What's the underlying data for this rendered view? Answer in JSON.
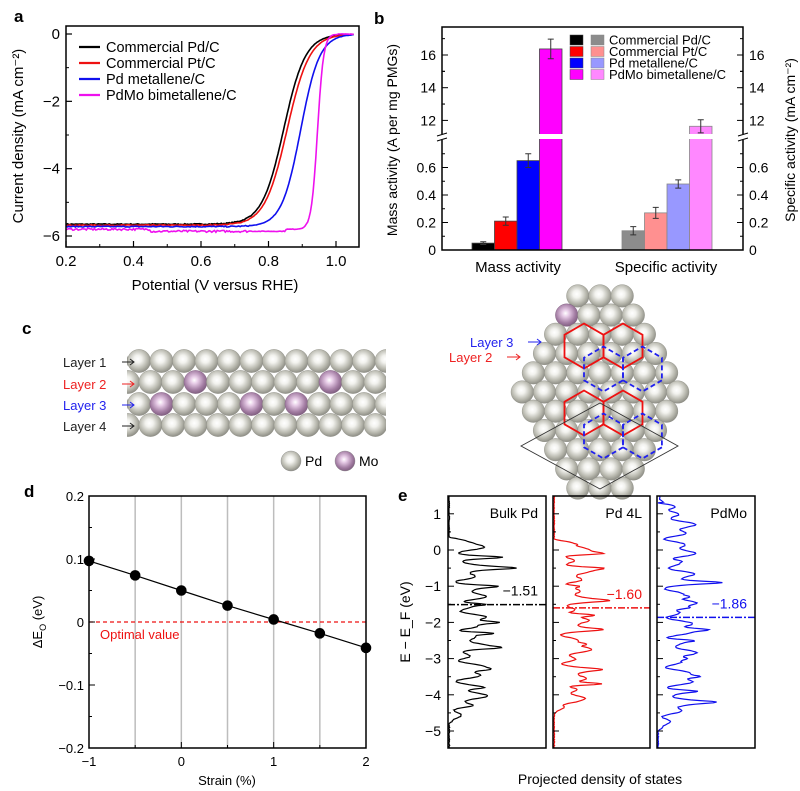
{
  "figure": {
    "panel_labels": [
      "a",
      "b",
      "c",
      "d",
      "e"
    ]
  },
  "chart_data": [
    {
      "panel": "a",
      "type": "line",
      "title": "",
      "xlabel": "Potential (V versus RHE)",
      "ylabel": "Current density (mA cm⁻²)",
      "xlim": [
        0.2,
        1.07
      ],
      "ylim": [
        -6.3,
        0.3
      ],
      "xticks": [
        0.2,
        0.4,
        0.6,
        0.8,
        1.0
      ],
      "xtick_labels": [
        "0.2",
        "0.4",
        "0.6",
        "0.8",
        "1.0"
      ],
      "yticks": [
        0,
        -2,
        -4,
        -6
      ],
      "ytick_labels": [
        "0",
        "−2",
        "−4",
        "−6"
      ],
      "legend_position": "top-left",
      "grid": false,
      "series": [
        {
          "name": "Commercial Pd/C",
          "color": "#000000",
          "limiting_current": -5.65,
          "half_wave_potential": 0.845,
          "slope": 0.032
        },
        {
          "name": "Commercial Pt/C",
          "color": "#ee1111",
          "limiting_current": -5.68,
          "half_wave_potential": 0.855,
          "slope": 0.033
        },
        {
          "name": "Pd metallene/C",
          "color": "#1010ee",
          "limiting_current": -5.72,
          "half_wave_potential": 0.895,
          "slope": 0.028
        },
        {
          "name": "PdMo bimetallene/C",
          "color": "#ee11ee",
          "limiting_current": -5.8,
          "half_wave_potential": 0.945,
          "slope": 0.009
        }
      ]
    },
    {
      "panel": "b",
      "type": "bar",
      "title": "",
      "categories": [
        "Mass activity",
        "Specific activity"
      ],
      "ylabel_left": "Mass activity (A per mg PMGs)",
      "ylabel_right": "Specific activity (mA cm⁻²)",
      "axis_break": {
        "lower": [
          0,
          0.78
        ],
        "upper": [
          11,
          17.5
        ]
      },
      "yticks_lower": [
        "0",
        "0.2",
        "0.4",
        "0.6"
      ],
      "yticks_upper": [
        "12",
        "14",
        "16"
      ],
      "legend_position": "top-right",
      "series": [
        {
          "name": "Commercial Pd/C",
          "mass_color": "#000000",
          "specific_color": "#8c8c8c",
          "mass_activity": 0.05,
          "mass_error": 0.01,
          "specific_activity": 0.14,
          "specific_error": 0.03
        },
        {
          "name": "Commercial Pt/C",
          "mass_color": "#ff0000",
          "specific_color": "#ff9090",
          "mass_activity": 0.21,
          "mass_error": 0.03,
          "specific_activity": 0.27,
          "specific_error": 0.04
        },
        {
          "name": "Pd metallene/C",
          "mass_color": "#0000ff",
          "specific_color": "#9898ff",
          "mass_activity": 0.65,
          "mass_error": 0.05,
          "specific_activity": 0.48,
          "specific_error": 0.03
        },
        {
          "name": "PdMo bimetallene/C",
          "mass_color": "#ff00ff",
          "specific_color": "#ff88ff",
          "mass_activity": 16.37,
          "mass_error": 0.6,
          "specific_activity": 11.64,
          "specific_error": 0.4
        }
      ]
    },
    {
      "panel": "d",
      "type": "scatter",
      "title": "",
      "xlabel": "Strain (%)",
      "ylabel": "ΔE_O (eV)",
      "ylabel_main": "ΔE",
      "ylabel_sub": "O",
      "ylabel_unit": " (eV)",
      "xlim": [
        -1,
        2
      ],
      "ylim": [
        -0.2,
        0.2
      ],
      "xticks": [
        "−1",
        "0",
        "1",
        "2"
      ],
      "yticks": [
        "0.2",
        "0.1",
        "0",
        "−0.1",
        "−0.2"
      ],
      "grid": true,
      "x": [
        -1,
        -0.5,
        0,
        0.5,
        1,
        1.5,
        2
      ],
      "y": [
        0.097,
        0.074,
        0.05,
        0.026,
        0.004,
        -0.018,
        -0.041
      ],
      "reference_line": {
        "y": 0,
        "label": "Optimal value",
        "color": "#ee1111"
      }
    },
    {
      "panel": "e",
      "type": "line",
      "title": "",
      "xlabel": "Projected density of states",
      "ylabel": "E − E_F (eV)",
      "ylim": [
        -5.5,
        1.5
      ],
      "yticks": [
        "1",
        "0",
        "−1",
        "−2",
        "−3",
        "−4",
        "−5"
      ],
      "series": [
        {
          "name": "Bulk Pd",
          "color": "#000000",
          "d_band_center": -1.51,
          "d_band_label": "−1.51"
        },
        {
          "name": "Pd 4L",
          "color": "#ee1111",
          "d_band_center": -1.6,
          "d_band_label": "−1.60"
        },
        {
          "name": "PdMo",
          "color": "#1010ee",
          "d_band_center": -1.86,
          "d_band_label": "−1.86"
        }
      ]
    }
  ],
  "panel_c": {
    "side_layers": [
      {
        "label": "Layer 1",
        "color": "#222222"
      },
      {
        "label": "Layer 2",
        "color": "#ee2222"
      },
      {
        "label": "Layer 3",
        "color": "#2222ee"
      },
      {
        "label": "Layer 4",
        "color": "#222222"
      }
    ],
    "top_layers": [
      {
        "label": "Layer 3",
        "color": "#2222ee"
      },
      {
        "label": "Layer 2",
        "color": "#ee2222"
      }
    ],
    "legend": [
      {
        "label": "Pd",
        "color": "#c4c4bc"
      },
      {
        "label": "Mo",
        "color": "#b48cb4"
      }
    ]
  }
}
